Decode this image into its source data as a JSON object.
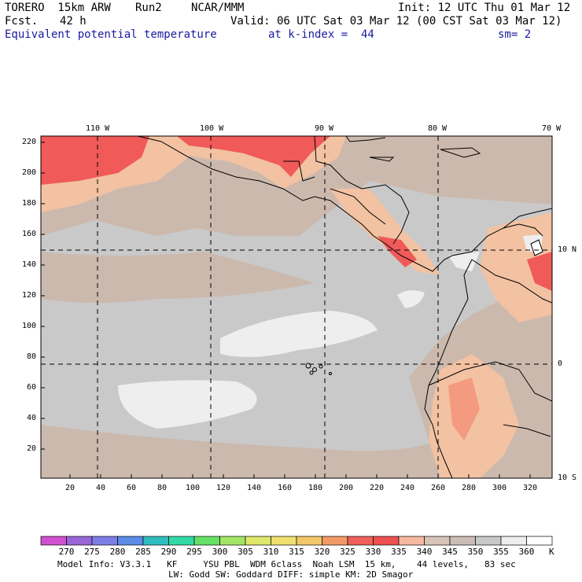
{
  "header": {
    "model": "TORERO  15km ARW",
    "run": "Run2",
    "org": "NCAR/MMM",
    "init": "Init: 12 UTC Thu 01 Mar 12",
    "fcst_label": "Fcst.",
    "fcst_value": "42 h",
    "valid": "Valid: 06 UTC Sat 03 Mar 12 (00 CST Sat 03 Mar 12)",
    "field": "Equivalent potential temperature",
    "level": "at k-index =  44",
    "smooth": "sm= 2"
  },
  "map": {
    "top_lon_labels": [
      "110 W",
      "100 W",
      "90 W",
      "80 W",
      "70 W"
    ],
    "right_lat_labels": [
      "10 N",
      "0",
      "10 S"
    ],
    "y_grid_labels": [
      "220",
      "200",
      "180",
      "160",
      "140",
      "120",
      "100",
      "80",
      "60",
      "40",
      "20"
    ],
    "x_grid_labels": [
      "20",
      "40",
      "60",
      "80",
      "100",
      "120",
      "140",
      "160",
      "180",
      "200",
      "220",
      "240",
      "260",
      "280",
      "300",
      "320"
    ],
    "colors": {
      "land_outline": "#000000",
      "ocean_base": "#c9c9c9",
      "warm": "#ccb9ae",
      "hot": "#f2c2a2",
      "hotter": "#f49a80",
      "hottest": "#f05a58",
      "cool_patch": "#eeeeee"
    }
  },
  "colorbar": {
    "values": [
      "270",
      "275",
      "280",
      "285",
      "290",
      "295",
      "300",
      "305",
      "310",
      "315",
      "320",
      "325",
      "330",
      "335",
      "340",
      "345",
      "350",
      "355",
      "360"
    ],
    "unit": "K",
    "swatches": [
      "#d14fd1",
      "#9966d8",
      "#7d7de6",
      "#5a8ce8",
      "#2fbdbd",
      "#33d9a6",
      "#66e066",
      "#a3e666",
      "#dde86a",
      "#f0e070",
      "#f3c86a",
      "#f29a66",
      "#f0605a",
      "#ee5050",
      "#f7b8a0",
      "#d8c4b8",
      "#cbbdb5",
      "#c8c8c8",
      "#eeeeee",
      "#ffffff"
    ]
  },
  "footer": {
    "line1": "Model Info: V3.3.1   KF     YSU PBL  WDM 6class  Noah LSM  15 km,    44 levels,   83 sec",
    "line2": "LW: Godd SW: Goddard DIFF: simple KM: 2D Smagor"
  }
}
